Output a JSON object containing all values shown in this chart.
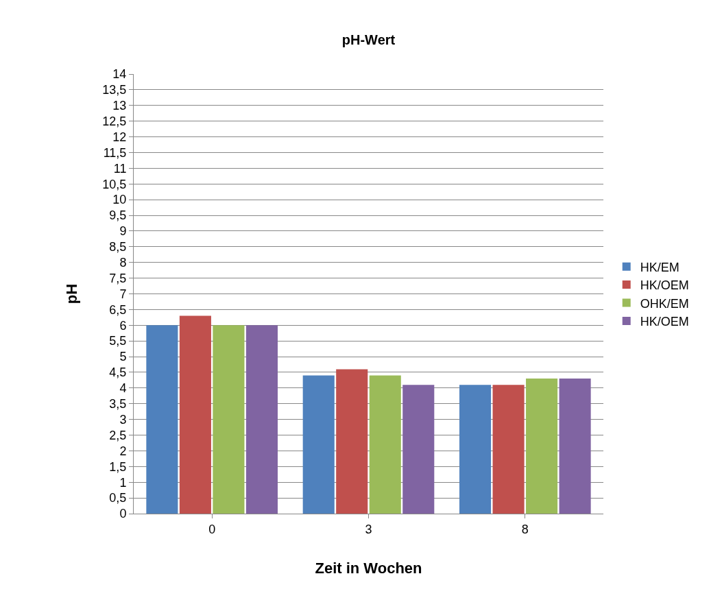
{
  "chart_data": {
    "type": "bar",
    "title": "pH-Wert",
    "xlabel": "Zeit in Wochen",
    "ylabel": "pH",
    "categories": [
      "0",
      "3",
      "8"
    ],
    "series": [
      {
        "name": "HK/EM",
        "color": "#4f81bd",
        "values": [
          6.0,
          4.4,
          4.1
        ]
      },
      {
        "name": "HK/OEM",
        "color": "#c0504d",
        "values": [
          6.3,
          4.6,
          4.1
        ]
      },
      {
        "name": "OHK/EM",
        "color": "#9bbb59",
        "values": [
          6.0,
          4.4,
          4.3
        ]
      },
      {
        "name": "HK/OEM",
        "color": "#8064a2",
        "values": [
          6.0,
          4.1,
          4.3
        ]
      }
    ],
    "ylim": [
      0,
      14
    ],
    "yticks": [
      0,
      {
        "value": 0.5,
        "label": "0,5"
      },
      1,
      {
        "value": 1.5,
        "label": "1,5"
      },
      2,
      {
        "value": 2.5,
        "label": "2,5"
      },
      3,
      {
        "value": 3.5,
        "label": "3,5"
      },
      4,
      {
        "value": 4.5,
        "label": "4,5"
      },
      5,
      {
        "value": 5.5,
        "label": "5,5"
      },
      6,
      {
        "value": 6.5,
        "label": "6,5"
      },
      7,
      {
        "value": 7.5,
        "label": "7,5"
      },
      8,
      {
        "value": 8.5,
        "label": "8,5"
      },
      9,
      {
        "value": 9.5,
        "label": "9,5"
      },
      10,
      {
        "value": 10.5,
        "label": "10,5"
      },
      11,
      {
        "value": 11.5,
        "label": "11,5"
      },
      12,
      {
        "value": 12.5,
        "label": "12,5"
      },
      13,
      {
        "value": 13.5,
        "label": "13,5"
      },
      14
    ],
    "grid": "y",
    "legend": "right"
  }
}
